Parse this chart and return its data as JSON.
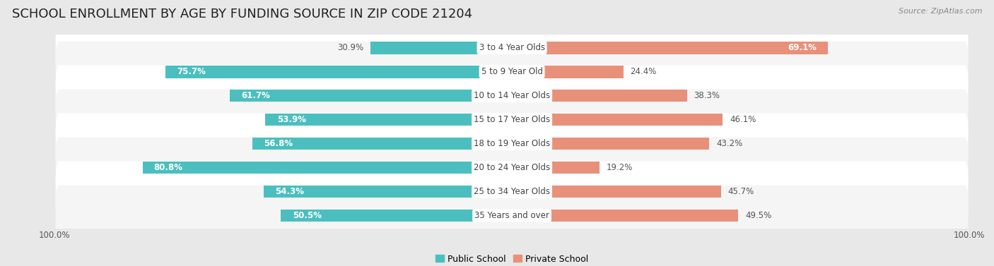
{
  "title": "SCHOOL ENROLLMENT BY AGE BY FUNDING SOURCE IN ZIP CODE 21204",
  "source": "Source: ZipAtlas.com",
  "categories": [
    "3 to 4 Year Olds",
    "5 to 9 Year Old",
    "10 to 14 Year Olds",
    "15 to 17 Year Olds",
    "18 to 19 Year Olds",
    "20 to 24 Year Olds",
    "25 to 34 Year Olds",
    "35 Years and over"
  ],
  "public_pct": [
    30.9,
    75.7,
    61.7,
    53.9,
    56.8,
    80.8,
    54.3,
    50.5
  ],
  "private_pct": [
    69.1,
    24.4,
    38.3,
    46.1,
    43.2,
    19.2,
    45.7,
    49.5
  ],
  "public_color": "#4BBFBF",
  "private_color": "#E8907A",
  "public_label": "Public School",
  "private_label": "Private School",
  "bg_color": "#e8e8e8",
  "row_bg_even": "#f5f5f5",
  "row_bg_odd": "#ffffff",
  "title_fontsize": 13,
  "label_fontsize": 8.5,
  "tick_fontsize": 8.5,
  "source_fontsize": 8
}
